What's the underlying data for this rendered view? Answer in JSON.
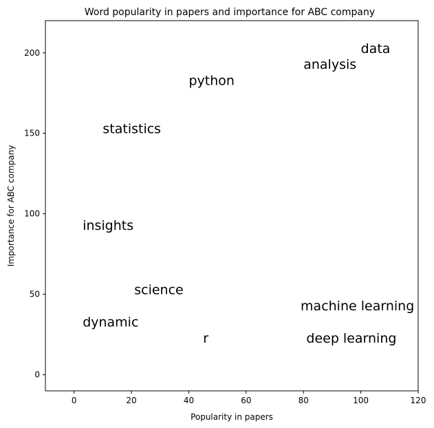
{
  "chart_data": {
    "type": "scatter",
    "title": "Word popularity in papers and importance for ABC company",
    "xlabel": "Popularity in papers",
    "ylabel": "Importance for ABC company",
    "xlim": [
      -10,
      120
    ],
    "ylim": [
      -10,
      220
    ],
    "xticks": [
      0,
      20,
      40,
      60,
      80,
      100,
      120
    ],
    "yticks": [
      0,
      50,
      100,
      150,
      200
    ],
    "grid": false,
    "points": [
      {
        "label": "data",
        "x": 100,
        "y": 200
      },
      {
        "label": "analysis",
        "x": 80,
        "y": 190
      },
      {
        "label": "python",
        "x": 40,
        "y": 180
      },
      {
        "label": "statistics",
        "x": 10,
        "y": 150
      },
      {
        "label": "insights",
        "x": 3,
        "y": 90
      },
      {
        "label": "science",
        "x": 21,
        "y": 50
      },
      {
        "label": "machine learning",
        "x": 79,
        "y": 40
      },
      {
        "label": "dynamic",
        "x": 3,
        "y": 30
      },
      {
        "label": "r",
        "x": 45,
        "y": 20
      },
      {
        "label": "deep learning",
        "x": 81,
        "y": 20
      }
    ]
  }
}
